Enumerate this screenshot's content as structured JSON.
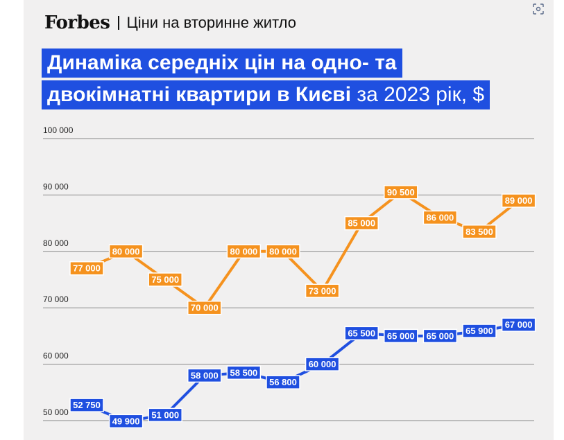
{
  "header": {
    "logo": "Forbes",
    "section": "Ціни на вторинне житло"
  },
  "title": {
    "line1": "Динаміка середніх цін на одно- та",
    "line2_bold": "двокімнатні квартири в Києві",
    "line2_light": " за 2023 рік, $"
  },
  "colors": {
    "orange": "#f5921e",
    "blue": "#1f4fe0",
    "grid": "#888888",
    "bg": "#f1f0f0"
  },
  "icons": {
    "corner": "focus-scan-icon"
  },
  "chart_data": {
    "type": "line",
    "x": [
      1,
      2,
      3,
      4,
      5,
      6,
      7,
      8,
      9,
      10,
      11,
      12
    ],
    "ylim": [
      50000,
      100000
    ],
    "yticks": [
      50000,
      60000,
      70000,
      80000,
      90000,
      100000
    ],
    "ytick_labels": [
      "50 000",
      "60 000",
      "70 000",
      "80 000",
      "90 000",
      "100 000"
    ],
    "grid": true,
    "series": [
      {
        "values": [
          77000,
          80000,
          75000,
          70000,
          80000,
          80000,
          73000,
          85000,
          90500,
          86000,
          83500,
          89000
        ],
        "labels": [
          "77 000",
          "80 000",
          "75 000",
          "70 000",
          "80 000",
          "80 000",
          "73 000",
          "85 000",
          "90 500",
          "86 000",
          "83 500",
          "89 000"
        ],
        "color": "#f5921e"
      },
      {
        "values": [
          52750,
          49900,
          51000,
          58000,
          58500,
          56800,
          60000,
          65500,
          65000,
          65000,
          65900,
          67000
        ],
        "labels": [
          "52 750",
          "49 900",
          "51 000",
          "58 000",
          "58 500",
          "56 800",
          "60 000",
          "65 500",
          "65 000",
          "65 000",
          "65 900",
          "67 000"
        ],
        "color": "#1f4fe0"
      }
    ]
  }
}
